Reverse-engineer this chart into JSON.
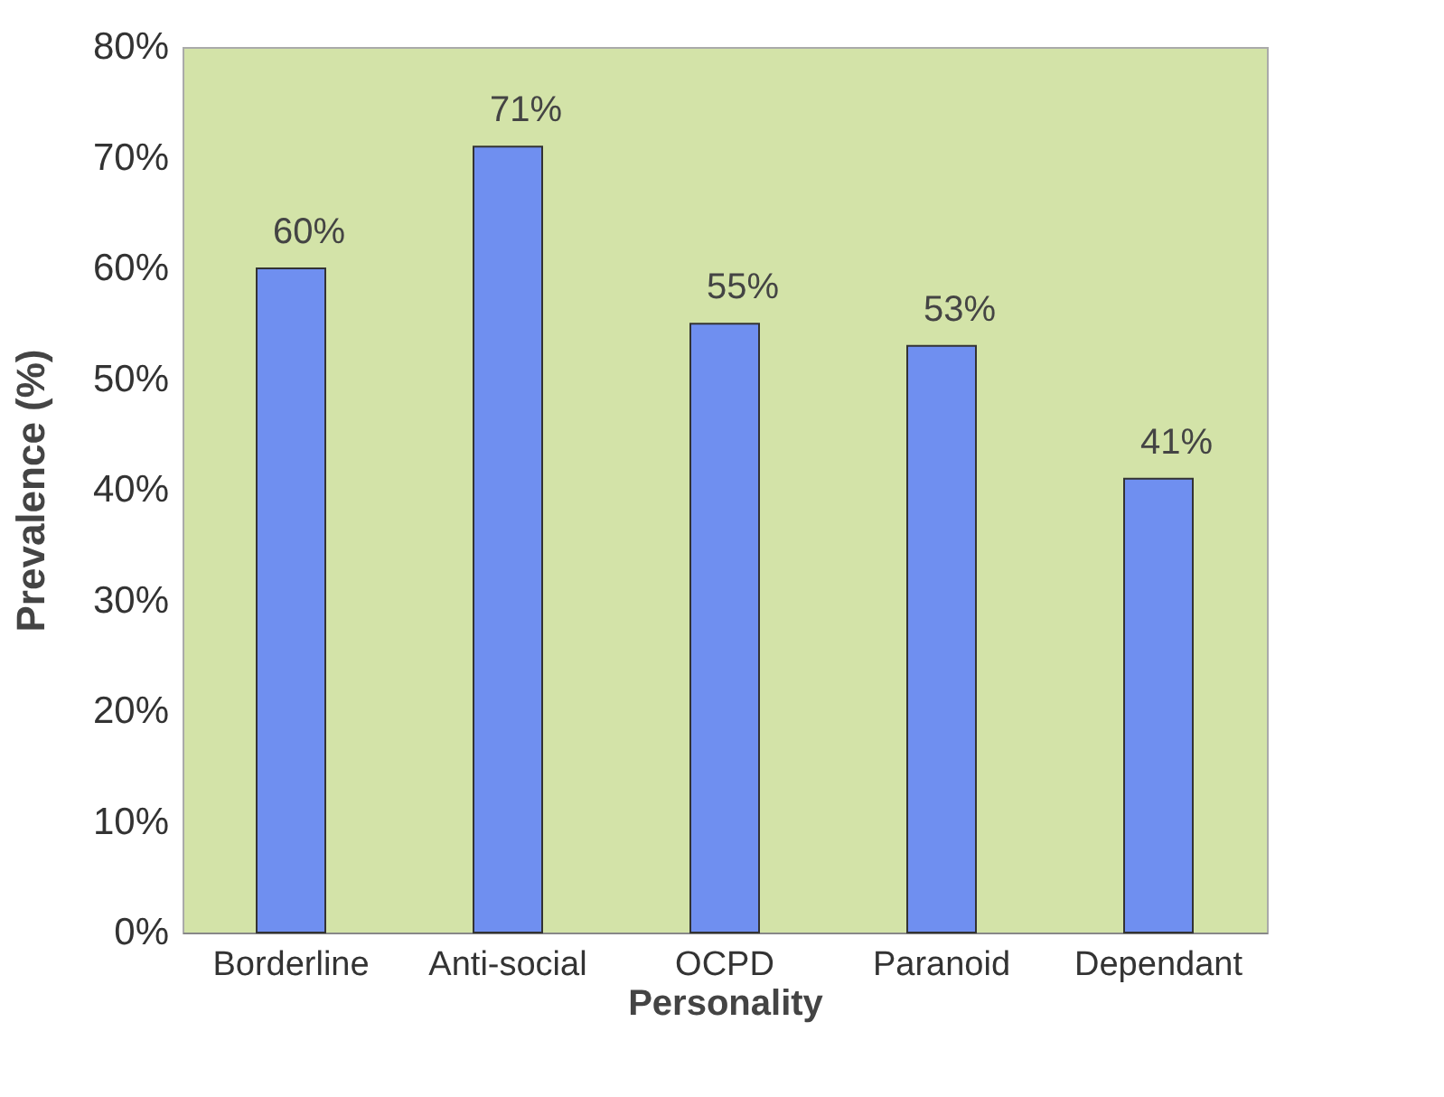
{
  "chart_data": {
    "type": "bar",
    "xlabel": "Personality",
    "ylabel": "Prevalence (%)",
    "categories": [
      "Borderline",
      "Anti-social",
      "OCPD",
      "Paranoid",
      "Dependant"
    ],
    "values": [
      60,
      71,
      55,
      53,
      41
    ],
    "value_labels": [
      "60%",
      "71%",
      "55%",
      "53%",
      "41%"
    ],
    "color": "#6f8ff0",
    "ylim": [
      0,
      80
    ],
    "yticks": [
      {
        "value": 0,
        "label": "0%"
      },
      {
        "value": 10,
        "label": "10%"
      },
      {
        "value": 20,
        "label": "20%"
      },
      {
        "value": 30,
        "label": "30%"
      },
      {
        "value": 40,
        "label": "40%"
      },
      {
        "value": 50,
        "label": "50%"
      },
      {
        "value": 60,
        "label": "60%"
      },
      {
        "value": 70,
        "label": "70%"
      },
      {
        "value": 80,
        "label": "80%"
      }
    ],
    "grid": false
  }
}
